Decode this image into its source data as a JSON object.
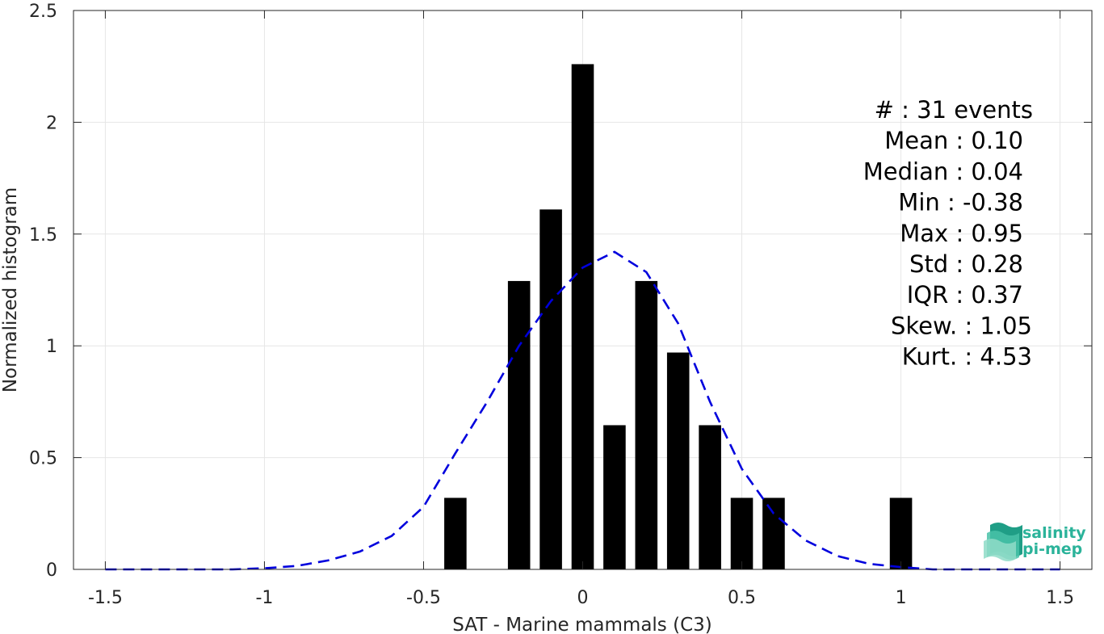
{
  "chart_data": {
    "type": "bar",
    "xlabel": "SAT - Marine mammals (C3)",
    "ylabel": "Normalized histogram",
    "xlim": [
      -1.6,
      1.6
    ],
    "ylim": [
      0,
      2.5
    ],
    "xticks": [
      -1.5,
      -1,
      -0.5,
      0,
      0.5,
      1,
      1.5
    ],
    "xtick_labels": [
      "-1.5",
      "-1",
      "-0.5",
      "0",
      "0.5",
      "1",
      "1.5"
    ],
    "yticks": [
      0,
      0.5,
      1,
      1.5,
      2,
      2.5
    ],
    "ytick_labels": [
      "0",
      "0.5",
      "1",
      "1.5",
      "2",
      "2.5"
    ],
    "grid": true,
    "bar_width": 0.07,
    "bar_color": "#000000",
    "bars": [
      {
        "x": -0.4,
        "y": 0.32
      },
      {
        "x": -0.2,
        "y": 1.29
      },
      {
        "x": -0.1,
        "y": 1.61
      },
      {
        "x": 0.0,
        "y": 2.26
      },
      {
        "x": 0.1,
        "y": 0.645
      },
      {
        "x": 0.2,
        "y": 1.29
      },
      {
        "x": 0.3,
        "y": 0.97
      },
      {
        "x": 0.4,
        "y": 0.645
      },
      {
        "x": 0.5,
        "y": 0.32
      },
      {
        "x": 0.6,
        "y": 0.32
      },
      {
        "x": 1.0,
        "y": 0.32
      }
    ],
    "fit_curve": {
      "style": "dashed",
      "color": "#0000dd",
      "x": [
        -1.5,
        -1.4,
        -1.3,
        -1.2,
        -1.1,
        -1.0,
        -0.9,
        -0.8,
        -0.7,
        -0.6,
        -0.5,
        -0.4,
        -0.3,
        -0.2,
        -0.1,
        0.0,
        0.1,
        0.2,
        0.3,
        0.4,
        0.5,
        0.6,
        0.7,
        0.8,
        0.9,
        1.0,
        1.1,
        1.2,
        1.3,
        1.4,
        1.5
      ],
      "y": [
        0.0,
        0.0,
        0.0,
        0.0,
        0.0,
        0.005,
        0.015,
        0.04,
        0.08,
        0.15,
        0.28,
        0.52,
        0.75,
        1.0,
        1.2,
        1.35,
        1.42,
        1.33,
        1.1,
        0.75,
        0.45,
        0.25,
        0.13,
        0.06,
        0.025,
        0.01,
        0.0,
        0.0,
        0.0,
        0.0,
        0.0
      ]
    },
    "stats": [
      "#  : 31 events",
      "Mean : 0.10",
      "Median : 0.04",
      "Min : -0.38",
      "Max : 0.95",
      "Std : 0.28",
      "IQR : 0.37",
      "Skew. : 1.05",
      "Kurt. : 4.53"
    ]
  },
  "logo": {
    "line1": "salinity",
    "line2": "pi-mep",
    "color": "#2bb39a"
  }
}
